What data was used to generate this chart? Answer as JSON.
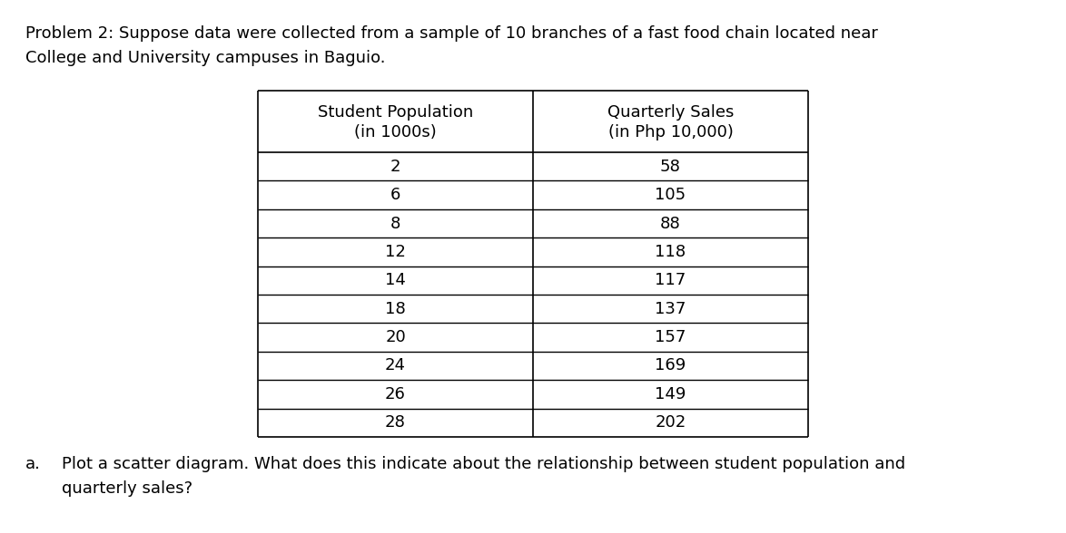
{
  "title_line1": "Problem 2: Suppose data were collected from a sample of 10 branches of a fast food chain located near",
  "title_line2": "College and University campuses in Baguio.",
  "col1_header1": "Student Population",
  "col1_header2": "(in 1000s)",
  "col2_header1": "Quarterly Sales",
  "col2_header2": "(in Php 10,000)",
  "student_population": [
    2,
    6,
    8,
    12,
    14,
    18,
    20,
    24,
    26,
    28
  ],
  "quarterly_sales": [
    58,
    105,
    88,
    118,
    117,
    137,
    157,
    169,
    149,
    202
  ],
  "question_label": "a.",
  "question_text1": "Plot a scatter diagram. What does this indicate about the relationship between student population and",
  "question_text2": "quarterly sales?",
  "font_family": "DejaVu Sans",
  "title_fontsize": 13.0,
  "table_fontsize": 13.0,
  "question_fontsize": 13.0,
  "text_color": "#000000",
  "background_color": "#ffffff",
  "table_border_color": "#000000"
}
